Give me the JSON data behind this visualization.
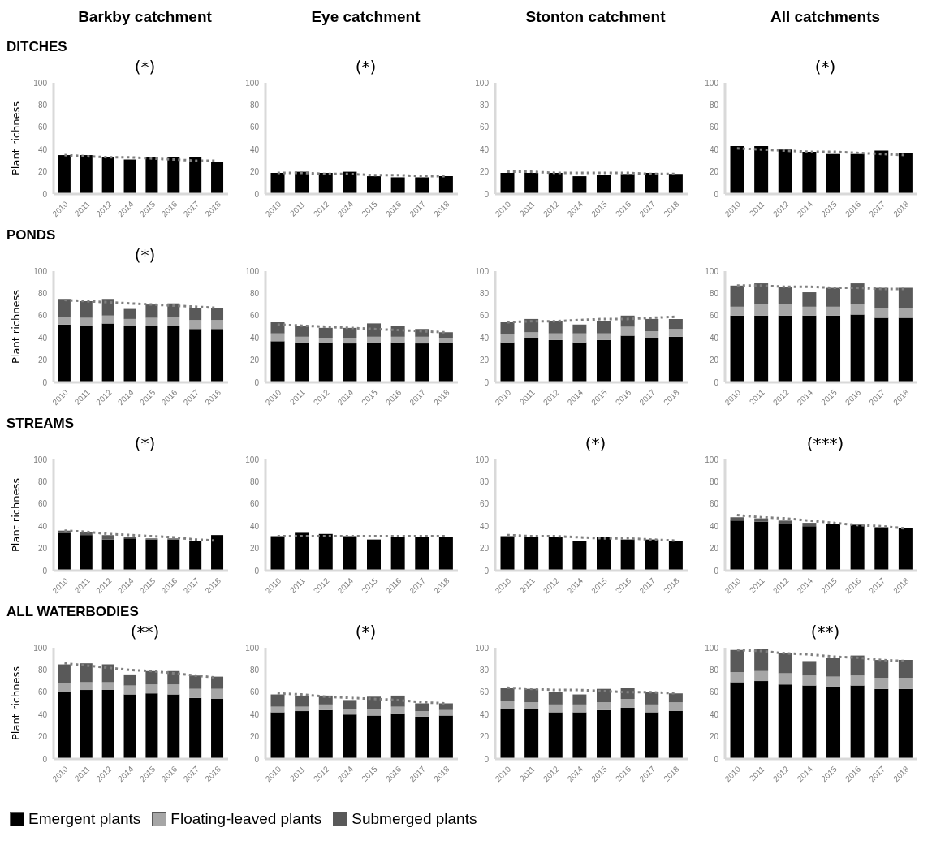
{
  "chart_data": [
    {
      "type": "bar",
      "title": "Barkby catchment",
      "subtitle": "DITCHES",
      "ylabel": "Plant richness",
      "annotations": [
        "(*)"
      ],
      "categories": [
        "2010",
        "2011",
        "2012",
        "2014",
        "2015",
        "2016",
        "2017",
        "2018"
      ],
      "stacked": true,
      "ylim": [
        0,
        100
      ],
      "yticks": [
        0,
        20,
        40,
        60,
        80,
        100
      ],
      "series": [
        {
          "color": "#000000",
          "values": [
            35,
            35,
            33,
            31,
            33,
            33,
            33,
            29
          ]
        },
        {
          "type": "line",
          "color": "#808080",
          "line_style": "dotted",
          "values": [
            35,
            34,
            33,
            33,
            32,
            31,
            30,
            30
          ]
        }
      ]
    },
    {
      "type": "bar",
      "title": "Eye catchment",
      "annotations": [
        "(*)"
      ],
      "categories": [
        "2010",
        "2011",
        "2012",
        "2014",
        "2015",
        "2016",
        "2017",
        "2018"
      ],
      "stacked": true,
      "ylim": [
        0,
        100
      ],
      "yticks": [
        0,
        20,
        40,
        60,
        80,
        100
      ],
      "series": [
        {
          "color": "#000000",
          "values": [
            19,
            20,
            19,
            20,
            16,
            15,
            15,
            16
          ]
        },
        {
          "type": "line",
          "color": "#808080",
          "line_style": "dotted",
          "values": [
            19,
            19,
            18,
            18,
            17,
            17,
            16,
            16
          ]
        }
      ]
    },
    {
      "type": "bar",
      "title": "Stonton catchment",
      "categories": [
        "2010",
        "2011",
        "2012",
        "2014",
        "2015",
        "2016",
        "2017",
        "2018"
      ],
      "stacked": true,
      "ylim": [
        0,
        100
      ],
      "yticks": [
        0,
        20,
        40,
        60,
        80,
        100
      ],
      "series": [
        {
          "color": "#000000",
          "values": [
            19,
            19,
            19,
            16,
            17,
            18,
            19,
            18
          ]
        },
        {
          "type": "line",
          "color": "#808080",
          "line_style": "dotted",
          "values": [
            20,
            20,
            19,
            19,
            19,
            19,
            18,
            18
          ]
        }
      ]
    },
    {
      "type": "bar",
      "title": "All catchments",
      "annotations": [
        "(*)"
      ],
      "categories": [
        "2010",
        "2011",
        "2012",
        "2014",
        "2015",
        "2016",
        "2017",
        "2018"
      ],
      "stacked": true,
      "ylim": [
        0,
        100
      ],
      "yticks": [
        0,
        20,
        40,
        60,
        80,
        100
      ],
      "series": [
        {
          "color": "#000000",
          "values": [
            43,
            43,
            40,
            38,
            36,
            36,
            39,
            37
          ]
        },
        {
          "type": "line",
          "color": "#808080",
          "line_style": "dotted",
          "values": [
            41,
            40,
            39,
            38,
            38,
            37,
            36,
            35
          ]
        }
      ]
    },
    {
      "type": "bar",
      "subtitle": "PONDS",
      "ylabel": "Plant richness",
      "annotations": [
        "(*)"
      ],
      "categories": [
        "2010",
        "2011",
        "2012",
        "2014",
        "2015",
        "2016",
        "2017",
        "2018"
      ],
      "stacked": true,
      "ylim": [
        0,
        100
      ],
      "yticks": [
        0,
        20,
        40,
        60,
        80,
        100
      ],
      "series": [
        {
          "color": "#000000",
          "values": [
            52,
            51,
            53,
            51,
            51,
            51,
            48,
            48
          ]
        },
        {
          "color": "#a6a6a6",
          "values": [
            7,
            7,
            7,
            6,
            7,
            8,
            8,
            8
          ]
        },
        {
          "color": "#595959",
          "values": [
            16,
            15,
            15,
            9,
            12,
            12,
            11,
            11
          ]
        },
        {
          "type": "line",
          "color": "#808080",
          "line_style": "dotted",
          "values": [
            74,
            73,
            72,
            71,
            70,
            69,
            68,
            67
          ]
        }
      ]
    },
    {
      "type": "bar",
      "categories": [
        "2010",
        "2011",
        "2012",
        "2014",
        "2015",
        "2016",
        "2017",
        "2018"
      ],
      "stacked": true,
      "ylim": [
        0,
        100
      ],
      "yticks": [
        0,
        20,
        40,
        60,
        80,
        100
      ],
      "series": [
        {
          "color": "#000000",
          "values": [
            37,
            36,
            36,
            35,
            36,
            36,
            35,
            35
          ]
        },
        {
          "color": "#a6a6a6",
          "values": [
            7,
            5,
            4,
            5,
            5,
            5,
            6,
            5
          ]
        },
        {
          "color": "#595959",
          "values": [
            10,
            10,
            9,
            9,
            12,
            10,
            7,
            5
          ]
        },
        {
          "type": "line",
          "color": "#808080",
          "line_style": "dotted",
          "values": [
            52,
            51,
            50,
            49,
            48,
            47,
            46,
            45
          ]
        }
      ]
    },
    {
      "type": "bar",
      "categories": [
        "2010",
        "2011",
        "2012",
        "2014",
        "2015",
        "2016",
        "2017",
        "2018"
      ],
      "stacked": true,
      "ylim": [
        0,
        100
      ],
      "yticks": [
        0,
        20,
        40,
        60,
        80,
        100
      ],
      "series": [
        {
          "color": "#000000",
          "values": [
            36,
            40,
            38,
            36,
            38,
            42,
            40,
            41
          ]
        },
        {
          "color": "#a6a6a6",
          "values": [
            7,
            5,
            6,
            8,
            6,
            8,
            6,
            7
          ]
        },
        {
          "color": "#595959",
          "values": [
            11,
            12,
            11,
            8,
            11,
            10,
            11,
            9
          ]
        },
        {
          "type": "line",
          "color": "#808080",
          "line_style": "dotted",
          "values": [
            54,
            55,
            55,
            56,
            57,
            57,
            58,
            59
          ]
        }
      ]
    },
    {
      "type": "bar",
      "categories": [
        "2010",
        "2011",
        "2012",
        "2014",
        "2015",
        "2016",
        "2017",
        "2018"
      ],
      "stacked": true,
      "ylim": [
        0,
        100
      ],
      "yticks": [
        0,
        20,
        40,
        60,
        80,
        100
      ],
      "series": [
        {
          "color": "#000000",
          "values": [
            60,
            60,
            60,
            60,
            60,
            61,
            58,
            58
          ]
        },
        {
          "color": "#a6a6a6",
          "values": [
            8,
            10,
            10,
            8,
            8,
            9,
            9,
            9
          ]
        },
        {
          "color": "#595959",
          "values": [
            19,
            19,
            16,
            13,
            17,
            19,
            18,
            18
          ]
        },
        {
          "type": "line",
          "color": "#808080",
          "line_style": "dotted",
          "values": [
            87,
            87,
            86,
            86,
            85,
            85,
            84,
            84
          ]
        }
      ]
    },
    {
      "type": "bar",
      "subtitle": "STREAMS",
      "ylabel": "Plant richness",
      "annotations": [
        "(*)"
      ],
      "categories": [
        "2010",
        "2011",
        "2012",
        "2014",
        "2015",
        "2016",
        "2017",
        "2018"
      ],
      "stacked": true,
      "ylim": [
        0,
        100
      ],
      "yticks": [
        0,
        20,
        40,
        60,
        80,
        100
      ],
      "series": [
        {
          "color": "#000000",
          "values": [
            34,
            32,
            28,
            29,
            28,
            28,
            27,
            32
          ]
        },
        {
          "color": "#595959",
          "values": [
            2,
            3,
            4,
            1,
            1,
            1,
            null,
            null
          ]
        },
        {
          "type": "line",
          "color": "#808080",
          "line_style": "dotted",
          "values": [
            36,
            35,
            33,
            32,
            31,
            30,
            28,
            27
          ]
        }
      ]
    },
    {
      "type": "bar",
      "categories": [
        "2010",
        "2011",
        "2012",
        "2014",
        "2015",
        "2016",
        "2017",
        "2018"
      ],
      "stacked": true,
      "ylim": [
        0,
        100
      ],
      "yticks": [
        0,
        20,
        40,
        60,
        80,
        100
      ],
      "series": [
        {
          "color": "#000000",
          "values": [
            31,
            34,
            33,
            31,
            28,
            30,
            30,
            30
          ]
        },
        {
          "type": "line",
          "color": "#808080",
          "line_style": "dotted",
          "values": [
            31,
            31,
            31,
            31,
            31,
            31,
            31,
            31
          ]
        }
      ]
    },
    {
      "type": "bar",
      "annotations": [
        "(*)"
      ],
      "categories": [
        "2010",
        "2011",
        "2012",
        "2014",
        "2015",
        "2016",
        "2017",
        "2018"
      ],
      "stacked": true,
      "ylim": [
        0,
        100
      ],
      "yticks": [
        0,
        20,
        40,
        60,
        80,
        100
      ],
      "series": [
        {
          "color": "#000000",
          "values": [
            31,
            30,
            30,
            27,
            30,
            28,
            28,
            27
          ]
        },
        {
          "type": "line",
          "color": "#808080",
          "line_style": "dotted",
          "values": [
            32,
            31,
            31,
            30,
            29,
            29,
            28,
            27
          ]
        }
      ]
    },
    {
      "type": "bar",
      "annotations": [
        "(***)"
      ],
      "categories": [
        "2010",
        "2011",
        "2012",
        "2014",
        "2015",
        "2016",
        "2017",
        "2018"
      ],
      "stacked": true,
      "ylim": [
        0,
        100
      ],
      "yticks": [
        0,
        20,
        40,
        60,
        80,
        100
      ],
      "series": [
        {
          "color": "#000000",
          "values": [
            45,
            44,
            42,
            40,
            42,
            41,
            39,
            38
          ]
        },
        {
          "color": "#595959",
          "values": [
            3,
            3,
            3,
            3,
            null,
            1,
            null,
            null
          ]
        },
        {
          "type": "line",
          "color": "#808080",
          "line_style": "dotted",
          "values": [
            50,
            48,
            47,
            45,
            43,
            41,
            40,
            38
          ]
        }
      ]
    },
    {
      "type": "bar",
      "subtitle": "ALL WATERBODIES",
      "ylabel": "Plant richness",
      "annotations": [
        "(**)"
      ],
      "categories": [
        "2010",
        "2011",
        "2012",
        "2014",
        "2015",
        "2016",
        "2017",
        "2018"
      ],
      "stacked": true,
      "ylim": [
        0,
        100
      ],
      "yticks": [
        0,
        20,
        40,
        60,
        80,
        100
      ],
      "series": [
        {
          "color": "#000000",
          "values": [
            60,
            62,
            62,
            58,
            59,
            58,
            55,
            54
          ]
        },
        {
          "color": "#a6a6a6",
          "values": [
            8,
            7,
            7,
            8,
            8,
            9,
            8,
            9
          ]
        },
        {
          "color": "#595959",
          "values": [
            17,
            17,
            16,
            10,
            12,
            12,
            12,
            11
          ]
        },
        {
          "type": "line",
          "color": "#808080",
          "line_style": "dotted",
          "values": [
            86,
            84,
            82,
            80,
            79,
            77,
            75,
            73
          ]
        }
      ]
    },
    {
      "type": "bar",
      "annotations": [
        "(*)"
      ],
      "categories": [
        "2010",
        "2011",
        "2012",
        "2014",
        "2015",
        "2016",
        "2017",
        "2018"
      ],
      "stacked": true,
      "ylim": [
        0,
        100
      ],
      "yticks": [
        0,
        20,
        40,
        60,
        80,
        100
      ],
      "series": [
        {
          "color": "#000000",
          "values": [
            42,
            43,
            44,
            40,
            39,
            41,
            38,
            39
          ]
        },
        {
          "color": "#a6a6a6",
          "values": [
            5,
            4,
            5,
            5,
            6,
            6,
            5,
            5
          ]
        },
        {
          "color": "#595959",
          "values": [
            11,
            10,
            8,
            8,
            11,
            10,
            7,
            6
          ]
        },
        {
          "type": "line",
          "color": "#808080",
          "line_style": "dotted",
          "values": [
            59,
            58,
            56,
            55,
            54,
            53,
            51,
            50
          ]
        }
      ]
    },
    {
      "type": "bar",
      "categories": [
        "2010",
        "2011",
        "2012",
        "2014",
        "2015",
        "2016",
        "2017",
        "2018"
      ],
      "stacked": true,
      "ylim": [
        0,
        100
      ],
      "yticks": [
        0,
        20,
        40,
        60,
        80,
        100
      ],
      "series": [
        {
          "color": "#000000",
          "values": [
            45,
            45,
            42,
            42,
            44,
            46,
            42,
            43
          ]
        },
        {
          "color": "#a6a6a6",
          "values": [
            7,
            6,
            7,
            7,
            7,
            8,
            7,
            8
          ]
        },
        {
          "color": "#595959",
          "values": [
            12,
            12,
            11,
            9,
            12,
            10,
            11,
            8
          ]
        },
        {
          "type": "line",
          "color": "#808080",
          "line_style": "dotted",
          "values": [
            64,
            63,
            62,
            62,
            61,
            60,
            60,
            59
          ]
        }
      ]
    },
    {
      "type": "bar",
      "annotations": [
        "(**)"
      ],
      "legend": "bottom",
      "categories": [
        "2010",
        "2011",
        "2012",
        "2014",
        "2015",
        "2016",
        "2017",
        "2018"
      ],
      "stacked": true,
      "ylim": [
        0,
        100
      ],
      "yticks": [
        0,
        20,
        40,
        60,
        80,
        100
      ],
      "series": [
        {
          "name": "Emergent plants",
          "color": "#000000",
          "values": [
            69,
            70,
            67,
            66,
            65,
            66,
            63,
            63
          ]
        },
        {
          "name": "Floating-leaved plants",
          "color": "#a6a6a6",
          "values": [
            9,
            9,
            10,
            9,
            9,
            9,
            10,
            10
          ]
        },
        {
          "name": "Submerged plants",
          "color": "#595959",
          "values": [
            20,
            20,
            18,
            13,
            17,
            18,
            16,
            16
          ]
        },
        {
          "type": "line",
          "color": "#808080",
          "line_style": "dotted",
          "values": [
            98,
            97,
            95,
            94,
            92,
            91,
            89,
            88
          ]
        }
      ]
    }
  ]
}
